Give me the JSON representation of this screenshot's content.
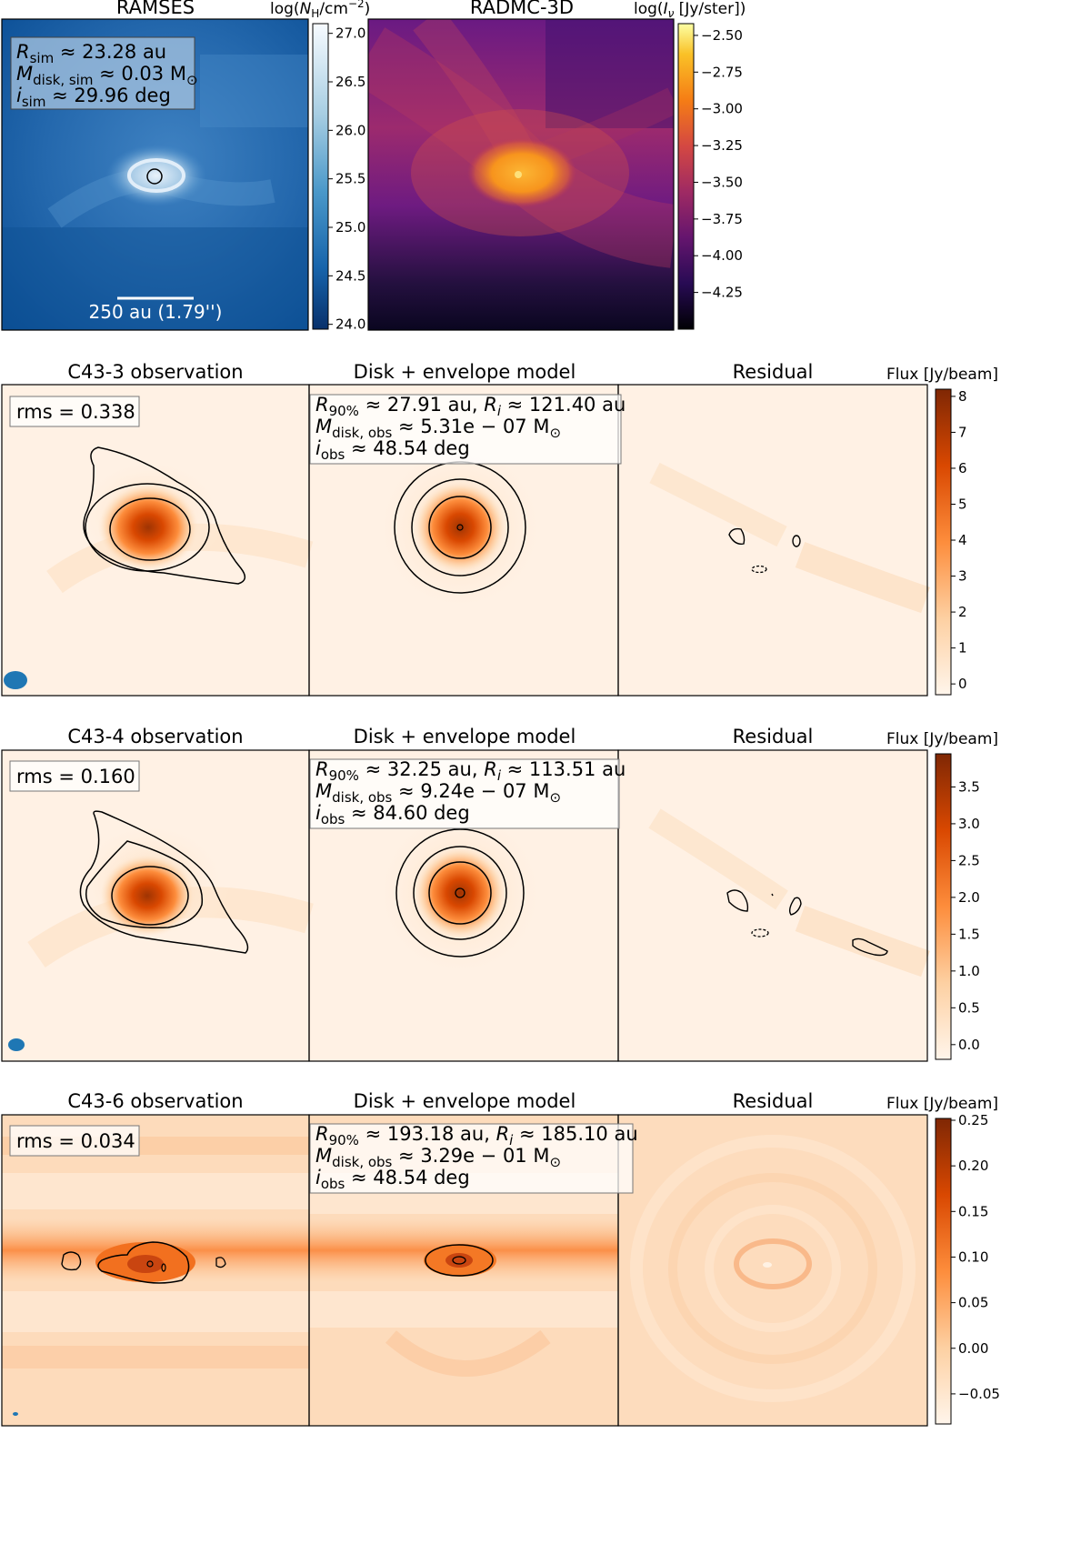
{
  "chart_data": [
    {
      "type": "heatmap",
      "panel": "ramses",
      "title": "RAMSES",
      "colorbar_label": "log(N_H/cm^-2)",
      "colorbar_ticks": [
        "27.0",
        "26.5",
        "26.0",
        "25.5",
        "25.0",
        "24.5",
        "24.0"
      ],
      "colorbar_range": [
        23.95,
        27.1
      ],
      "annotation": {
        "line1": {
          "sym": "R",
          "sub": "sim",
          "text": " ≈ 23.28 au"
        },
        "line2": {
          "sym": "M",
          "sub": "disk, sim",
          "text": " ≈ 0.03 M",
          "tail": "⊙"
        },
        "line3": {
          "sym": "i",
          "sub": "sim",
          "text": " ≈ 29.96 deg"
        }
      },
      "scalebar_label": "250 au (1.79'')"
    },
    {
      "type": "heatmap",
      "panel": "radmc",
      "title": "RADMC-3D",
      "colorbar_label": "log(I_ν [Jy/ster])",
      "colorbar_ticks": [
        "−2.50",
        "−2.75",
        "−3.00",
        "−3.25",
        "−3.50",
        "−3.75",
        "−4.00",
        "−4.25"
      ],
      "colorbar_range": [
        -4.5,
        -2.42
      ]
    },
    {
      "type": "heatmap",
      "row": "C43-3",
      "titles": [
        "C43-3 observation",
        "Disk + envelope model",
        "Residual"
      ],
      "colorbar_label": "Flux [Jy/beam]",
      "colorbar_ticks": [
        "8",
        "7",
        "6",
        "5",
        "4",
        "3",
        "2",
        "1",
        "0"
      ],
      "colorbar_range": [
        -0.3,
        8.2
      ],
      "rms": "rms = 0.338",
      "model": {
        "r90": " ≈ 27.91 au, ",
        "ri": " ≈ 121.40 au",
        "mdisk": " ≈ 5.31e − 07 M",
        "incl": " ≈ 48.54 deg"
      }
    },
    {
      "type": "heatmap",
      "row": "C43-4",
      "titles": [
        "C43-4 observation",
        "Disk + envelope model",
        "Residual"
      ],
      "colorbar_label": "Flux [Jy/beam]",
      "colorbar_ticks": [
        "3.5",
        "3.0",
        "2.5",
        "2.0",
        "1.5",
        "1.0",
        "0.5",
        "0.0"
      ],
      "colorbar_range": [
        -0.2,
        3.95
      ],
      "rms": "rms = 0.160",
      "model": {
        "r90": " ≈ 32.25 au, ",
        "ri": " ≈ 113.51 au",
        "mdisk": " ≈ 9.24e − 07 M",
        "incl": " ≈ 84.60 deg"
      }
    },
    {
      "type": "heatmap",
      "row": "C43-6",
      "titles": [
        "C43-6 observation",
        "Disk + envelope model",
        "Residual"
      ],
      "colorbar_label": "Flux [Jy/beam]",
      "colorbar_ticks": [
        "0.25",
        "0.20",
        "0.15",
        "0.10",
        "0.05",
        "0.00",
        "−0.05"
      ],
      "colorbar_range": [
        -0.083,
        0.252
      ],
      "rms": "rms = 0.034",
      "model": {
        "r90": " ≈ 193.18 au, ",
        "ri": " ≈ 185.10 au",
        "mdisk": " ≈ 3.29e − 01 M",
        "incl": " ≈ 48.54 deg"
      }
    }
  ]
}
